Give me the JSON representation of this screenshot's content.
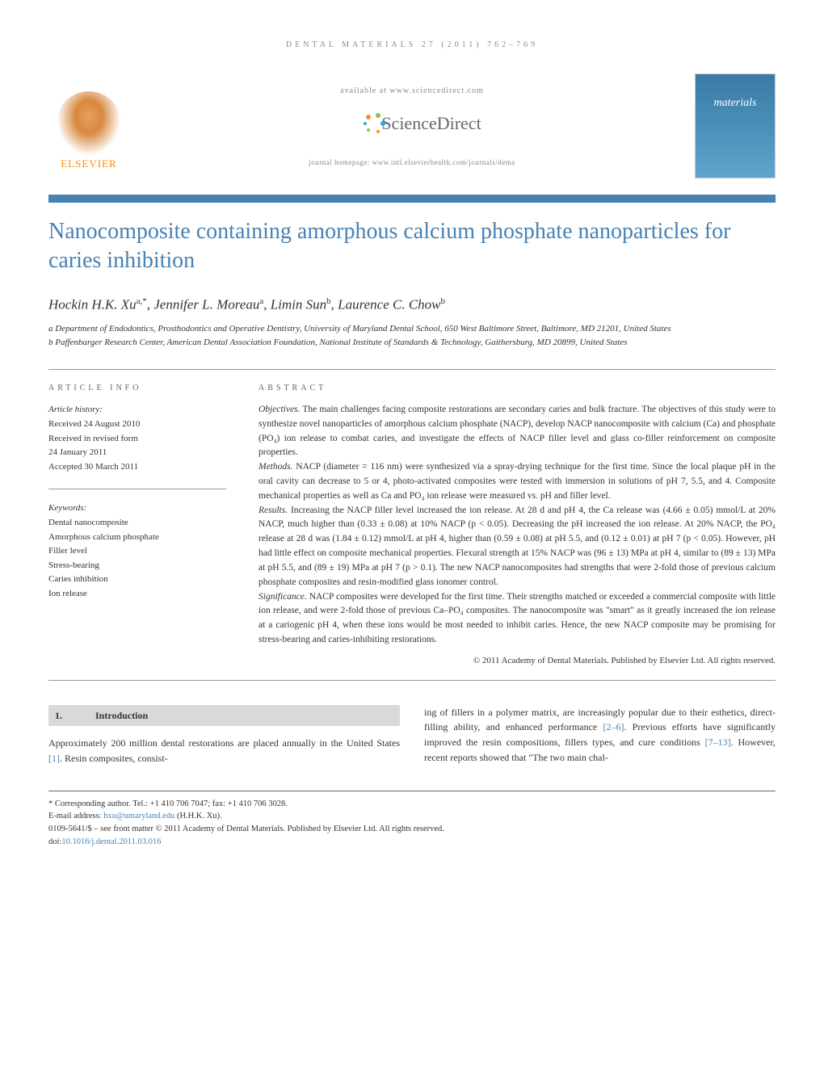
{
  "running_head": "DENTAL MATERIALS 27 (2011) 762–769",
  "header": {
    "elsevier_label": "ELSEVIER",
    "available_at": "available at www.sciencedirect.com",
    "sciencedirect_label": "ScienceDirect",
    "journal_homepage": "journal homepage: www.intl.elsevierhealth.com/journals/dema",
    "cover_title": "materials"
  },
  "article_title": "Nanocomposite containing amorphous calcium phosphate nanoparticles for caries inhibition",
  "authors_html": "Hockin H.K. Xu<sup>a,*</sup>, Jennifer L. Moreau<sup>a</sup>, Limin Sun<sup>b</sup>, Laurence C. Chow<sup>b</sup>",
  "affiliations": [
    "a Department of Endodontics, Prosthodontics and Operative Dentistry, University of Maryland Dental School, 650 West Baltimore Street, Baltimore, MD 21201, United States",
    "b Paffenbarger Research Center, American Dental Association Foundation, National Institute of Standards & Technology, Gaithersburg, MD 20899, United States"
  ],
  "article_info": {
    "heading": "ARTICLE INFO",
    "history_label": "Article history:",
    "history": [
      "Received 24 August 2010",
      "Received in revised form",
      "24 January 2011",
      "Accepted 30 March 2011"
    ],
    "keywords_label": "Keywords:",
    "keywords": [
      "Dental nanocomposite",
      "Amorphous calcium phosphate",
      "Filler level",
      "Stress-bearing",
      "Caries inhibition",
      "Ion release"
    ]
  },
  "abstract": {
    "heading": "ABSTRACT",
    "objectives_label": "Objectives.",
    "objectives": " The main challenges facing composite restorations are secondary caries and bulk fracture. The objectives of this study were to synthesize novel nanoparticles of amorphous calcium phosphate (NACP), develop NACP nanocomposite with calcium (Ca) and phosphate (PO₄) ion release to combat caries, and investigate the effects of NACP filler level and glass co-filler reinforcement on composite properties.",
    "methods_label": "Methods.",
    "methods": " NACP (diameter = 116 nm) were synthesized via a spray-drying technique for the first time. Since the local plaque pH in the oral cavity can decrease to 5 or 4, photo-activated composites were tested with immersion in solutions of pH 7, 5.5, and 4. Composite mechanical properties as well as Ca and PO₄ ion release were measured vs. pH and filler level.",
    "results_label": "Results.",
    "results": " Increasing the NACP filler level increased the ion release. At 28 d and pH 4, the Ca release was (4.66 ± 0.05) mmol/L at 20% NACP, much higher than (0.33 ± 0.08) at 10% NACP (p < 0.05). Decreasing the pH increased the ion release. At 20% NACP, the PO₄ release at 28 d was (1.84 ± 0.12) mmol/L at pH 4, higher than (0.59 ± 0.08) at pH 5.5, and (0.12 ± 0.01) at pH 7 (p < 0.05). However, pH had little effect on composite mechanical properties. Flexural strength at 15% NACP was (96 ± 13) MPa at pH 4, similar to (89 ± 13) MPa at pH 5.5, and (89 ± 19) MPa at pH 7 (p > 0.1). The new NACP nanocomposites had strengths that were 2-fold those of previous calcium phosphate composites and resin-modified glass ionomer control.",
    "significance_label": "Significance.",
    "significance": " NACP composites were developed for the first time. Their strengths matched or exceeded a commercial composite with little ion release, and were 2-fold those of previous Ca–PO₄ composites. The nanocomposite was \"smart\" as it greatly increased the ion release at a cariogenic pH 4, when these ions would be most needed to inhibit caries. Hence, the new NACP composite may be promising for stress-bearing and caries-inhibiting restorations.",
    "copyright": "© 2011 Academy of Dental Materials. Published by Elsevier Ltd. All rights reserved."
  },
  "section": {
    "number": "1.",
    "title": "Introduction"
  },
  "body": {
    "col1": "Approximately 200 million dental restorations are placed annually in the United States [1]. Resin composites, consist-",
    "col2": "ing of fillers in a polymer matrix, are increasingly popular due to their esthetics, direct-filling ability, and enhanced performance [2–6]. Previous efforts have significantly improved the resin compositions, fillers types, and cure conditions [7–13]. However, recent reports showed that \"The two main chal-",
    "refs": {
      "r1": "[1]",
      "r2_6": "[2–6]",
      "r7_13": "[7–13]"
    }
  },
  "footnotes": {
    "corresponding": "* Corresponding author. Tel.: +1 410 706 7047; fax: +1 410 706 3028.",
    "email_label": "E-mail address: ",
    "email": "hxu@umaryland.edu",
    "email_name": " (H.H.K. Xu).",
    "issn": "0109-5641/$ – see front matter © 2011 Academy of Dental Materials. Published by Elsevier Ltd. All rights reserved.",
    "doi_label": "doi:",
    "doi": "10.1016/j.dental.2011.03.016"
  },
  "colors": {
    "title_blue": "#4682b4",
    "elsevier_orange": "#ff8c00",
    "gray_text": "#888888",
    "section_bg": "#d9d9d9"
  }
}
